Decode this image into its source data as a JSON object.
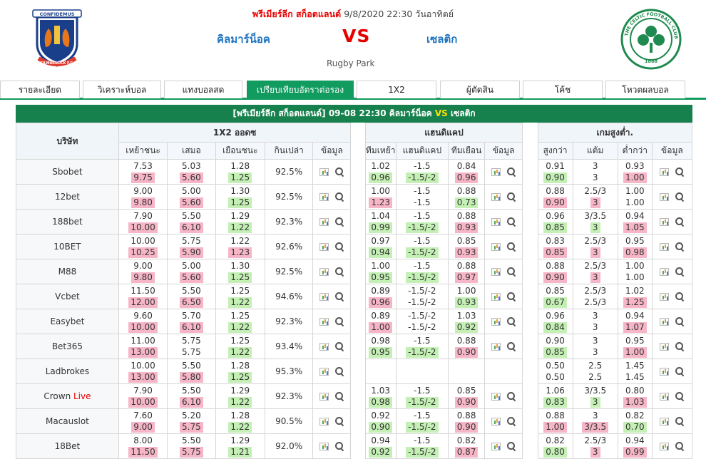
{
  "header": {
    "league": "พรีเมียร์ลีก สก็อตแลนด์",
    "datetime": "9/8/2020 22:30 วันอาทิตย์",
    "home_team": "คิลมาร์น็อค",
    "vs": "VS",
    "away_team": "เซลติก",
    "venue": "Rugby Park",
    "home_logo_text_top": "CONFIDEMUS",
    "home_logo_text_bottom": "KILMARNOCK F.C.",
    "away_logo_text": "THE CELTIC FOOTBALL CLUB",
    "away_logo_year": "1888"
  },
  "tabs": [
    {
      "label": "รายละเอียด"
    },
    {
      "label": "วิเคราะห์บอล"
    },
    {
      "label": "แทงบอลสด"
    },
    {
      "label": "เปรียบเทียบอัตราต่อรอง"
    },
    {
      "label": "1X2"
    },
    {
      "label": "ผู้ตัดสิน"
    },
    {
      "label": "โค้ช"
    },
    {
      "label": "โหวตผลบอล"
    }
  ],
  "matchbar": {
    "league": "[พรีเมียร์ลีก สก็อตแลนด์]",
    "datetime": "09-08 22:30",
    "home": "คิลมาร์น็อค",
    "vs": "VS",
    "away": "เซลติก"
  },
  "table": {
    "company_header": "บริษัท",
    "group_1x2": "1X2 ออดซ",
    "group_hdp": "แฮนดิแคป",
    "group_ou": "เกมสูงต่ำ.",
    "cols_1x2": [
      "เหย้าชนะ",
      "เสมอ",
      "เยือนชนะ",
      "กินเปล่า",
      "ข้อมูล"
    ],
    "cols_hdp": [
      "ทีมเหย้า",
      "แฮนดิแคป",
      "ทีมเยือน",
      "ข้อมูล"
    ],
    "cols_ou": [
      "สูงกว่า",
      "แต้ม",
      "ต่ำกว่า",
      "ข้อมูล"
    ],
    "colors": {
      "up": "#f7b6c8",
      "down": "#c4f0b5",
      "header_green": "#17814e",
      "tab_active": "#129b5f"
    },
    "rows": [
      {
        "company": "Sbobet",
        "live": "",
        "home": [
          "7.53",
          "9.75"
        ],
        "home_t": [
          "",
          "up"
        ],
        "draw": [
          "5.03",
          "5.60"
        ],
        "draw_t": [
          "",
          "up"
        ],
        "away": [
          "1.28",
          "1.25"
        ],
        "away_t": [
          "",
          "dn"
        ],
        "payout": "92.5%",
        "hdp_home": [
          "1.02",
          "0.96"
        ],
        "hdp_home_t": [
          "",
          "dn"
        ],
        "hdp_line": [
          "-1.5",
          "-1.5/-2"
        ],
        "hdp_line_t": [
          "",
          "dn"
        ],
        "hdp_away": [
          "0.84",
          "0.96"
        ],
        "hdp_away_t": [
          "",
          "up"
        ],
        "ou_over": [
          "0.91",
          "0.90"
        ],
        "ou_over_t": [
          "",
          "dn"
        ],
        "ou_line": [
          "3",
          "3"
        ],
        "ou_line_t": [
          "",
          ""
        ],
        "ou_under": [
          "0.93",
          "1.00"
        ],
        "ou_under_t": [
          "",
          "up"
        ]
      },
      {
        "company": "12bet",
        "live": "",
        "home": [
          "9.00",
          "9.80"
        ],
        "home_t": [
          "",
          "up"
        ],
        "draw": [
          "5.00",
          "5.60"
        ],
        "draw_t": [
          "",
          "up"
        ],
        "away": [
          "1.30",
          "1.25"
        ],
        "away_t": [
          "",
          "dn"
        ],
        "payout": "92.5%",
        "hdp_home": [
          "1.00",
          "1.23"
        ],
        "hdp_home_t": [
          "",
          "up"
        ],
        "hdp_line": [
          "-1.5",
          "-1.5"
        ],
        "hdp_line_t": [
          "",
          ""
        ],
        "hdp_away": [
          "0.88",
          "0.73"
        ],
        "hdp_away_t": [
          "",
          "dn"
        ],
        "ou_over": [
          "0.88",
          "0.90"
        ],
        "ou_over_t": [
          "",
          "up"
        ],
        "ou_line": [
          "2.5/3",
          "3"
        ],
        "ou_line_t": [
          "",
          "up"
        ],
        "ou_under": [
          "1.00",
          "1.00"
        ],
        "ou_under_t": [
          "",
          ""
        ]
      },
      {
        "company": "188bet",
        "live": "",
        "home": [
          "7.90",
          "10.00"
        ],
        "home_t": [
          "",
          "up"
        ],
        "draw": [
          "5.50",
          "6.10"
        ],
        "draw_t": [
          "",
          "up"
        ],
        "away": [
          "1.29",
          "1.22"
        ],
        "away_t": [
          "",
          "dn"
        ],
        "payout": "92.3%",
        "hdp_home": [
          "1.04",
          "0.99"
        ],
        "hdp_home_t": [
          "",
          "dn"
        ],
        "hdp_line": [
          "-1.5",
          "-1.5/-2"
        ],
        "hdp_line_t": [
          "",
          "dn"
        ],
        "hdp_away": [
          "0.88",
          "0.93"
        ],
        "hdp_away_t": [
          "",
          "up"
        ],
        "ou_over": [
          "0.96",
          "0.85"
        ],
        "ou_over_t": [
          "",
          "dn"
        ],
        "ou_line": [
          "3/3.5",
          "3"
        ],
        "ou_line_t": [
          "",
          "dn"
        ],
        "ou_under": [
          "0.94",
          "1.05"
        ],
        "ou_under_t": [
          "",
          "up"
        ]
      },
      {
        "company": "10BET",
        "live": "",
        "home": [
          "10.00",
          "10.25"
        ],
        "home_t": [
          "",
          "up"
        ],
        "draw": [
          "5.75",
          "5.90"
        ],
        "draw_t": [
          "",
          "up"
        ],
        "away": [
          "1.22",
          "1.23"
        ],
        "away_t": [
          "",
          "up"
        ],
        "payout": "92.6%",
        "hdp_home": [
          "0.97",
          "0.94"
        ],
        "hdp_home_t": [
          "",
          "dn"
        ],
        "hdp_line": [
          "-1.5",
          "-1.5/-2"
        ],
        "hdp_line_t": [
          "",
          "dn"
        ],
        "hdp_away": [
          "0.85",
          "0.93"
        ],
        "hdp_away_t": [
          "",
          "up"
        ],
        "ou_over": [
          "0.83",
          "0.85"
        ],
        "ou_over_t": [
          "",
          "up"
        ],
        "ou_line": [
          "2.5/3",
          "3"
        ],
        "ou_line_t": [
          "",
          "up"
        ],
        "ou_under": [
          "0.95",
          "0.98"
        ],
        "ou_under_t": [
          "",
          "up"
        ]
      },
      {
        "company": "M88",
        "live": "",
        "home": [
          "9.00",
          "9.80"
        ],
        "home_t": [
          "",
          "up"
        ],
        "draw": [
          "5.00",
          "5.60"
        ],
        "draw_t": [
          "",
          "up"
        ],
        "away": [
          "1.30",
          "1.25"
        ],
        "away_t": [
          "",
          "dn"
        ],
        "payout": "92.5%",
        "hdp_home": [
          "1.00",
          "0.95"
        ],
        "hdp_home_t": [
          "",
          "dn"
        ],
        "hdp_line": [
          "-1.5",
          "-1.5/-2"
        ],
        "hdp_line_t": [
          "",
          "dn"
        ],
        "hdp_away": [
          "0.88",
          "0.97"
        ],
        "hdp_away_t": [
          "",
          "up"
        ],
        "ou_over": [
          "0.88",
          "0.90"
        ],
        "ou_over_t": [
          "",
          "up"
        ],
        "ou_line": [
          "2.5/3",
          "3"
        ],
        "ou_line_t": [
          "",
          "up"
        ],
        "ou_under": [
          "1.00",
          "1.00"
        ],
        "ou_under_t": [
          "",
          ""
        ]
      },
      {
        "company": "Vcbet",
        "live": "",
        "home": [
          "11.50",
          "12.00"
        ],
        "home_t": [
          "",
          "up"
        ],
        "draw": [
          "5.50",
          "6.50"
        ],
        "draw_t": [
          "",
          "up"
        ],
        "away": [
          "1.25",
          "1.22"
        ],
        "away_t": [
          "",
          "dn"
        ],
        "payout": "94.6%",
        "hdp_home": [
          "0.89",
          "0.96"
        ],
        "hdp_home_t": [
          "",
          "up"
        ],
        "hdp_line": [
          "-1.5/-2",
          "-1.5/-2"
        ],
        "hdp_line_t": [
          "",
          ""
        ],
        "hdp_away": [
          "1.00",
          "0.93"
        ],
        "hdp_away_t": [
          "",
          "dn"
        ],
        "ou_over": [
          "0.85",
          "0.67"
        ],
        "ou_over_t": [
          "",
          "dn"
        ],
        "ou_line": [
          "2.5/3",
          "2.5/3"
        ],
        "ou_line_t": [
          "",
          ""
        ],
        "ou_under": [
          "1.02",
          "1.25"
        ],
        "ou_under_t": [
          "",
          "up"
        ]
      },
      {
        "company": "Easybet",
        "live": "",
        "home": [
          "9.60",
          "10.00"
        ],
        "home_t": [
          "",
          "up"
        ],
        "draw": [
          "5.70",
          "6.10"
        ],
        "draw_t": [
          "",
          "up"
        ],
        "away": [
          "1.25",
          "1.22"
        ],
        "away_t": [
          "",
          "dn"
        ],
        "payout": "92.3%",
        "hdp_home": [
          "0.89",
          "1.00"
        ],
        "hdp_home_t": [
          "",
          "up"
        ],
        "hdp_line": [
          "-1.5/-2",
          "-1.5/-2"
        ],
        "hdp_line_t": [
          "",
          ""
        ],
        "hdp_away": [
          "1.03",
          "0.92"
        ],
        "hdp_away_t": [
          "",
          "dn"
        ],
        "ou_over": [
          "0.96",
          "0.84"
        ],
        "ou_over_t": [
          "",
          "dn"
        ],
        "ou_line": [
          "3",
          "3"
        ],
        "ou_line_t": [
          "",
          ""
        ],
        "ou_under": [
          "0.94",
          "1.07"
        ],
        "ou_under_t": [
          "",
          "up"
        ]
      },
      {
        "company": "Bet365",
        "live": "",
        "home": [
          "11.00",
          "13.00"
        ],
        "home_t": [
          "",
          "up"
        ],
        "draw": [
          "5.75",
          "5.75"
        ],
        "draw_t": [
          "",
          ""
        ],
        "away": [
          "1.25",
          "1.22"
        ],
        "away_t": [
          "",
          "dn"
        ],
        "payout": "93.4%",
        "hdp_home": [
          "0.98",
          "0.95"
        ],
        "hdp_home_t": [
          "",
          "dn"
        ],
        "hdp_line": [
          "-1.5",
          "-1.5/-2"
        ],
        "hdp_line_t": [
          "",
          "dn"
        ],
        "hdp_away": [
          "0.88",
          "0.90"
        ],
        "hdp_away_t": [
          "",
          "up"
        ],
        "ou_over": [
          "0.90",
          "0.85"
        ],
        "ou_over_t": [
          "",
          "dn"
        ],
        "ou_line": [
          "3",
          "3"
        ],
        "ou_line_t": [
          "",
          ""
        ],
        "ou_under": [
          "0.95",
          "1.00"
        ],
        "ou_under_t": [
          "",
          "up"
        ]
      },
      {
        "company": "Ladbrokes",
        "live": "",
        "home": [
          "10.00",
          "13.00"
        ],
        "home_t": [
          "",
          "up"
        ],
        "draw": [
          "5.50",
          "5.80"
        ],
        "draw_t": [
          "",
          "up"
        ],
        "away": [
          "1.28",
          "1.25"
        ],
        "away_t": [
          "",
          "dn"
        ],
        "payout": "95.3%",
        "hdp_home": [
          "",
          ""
        ],
        "hdp_home_t": [
          "",
          ""
        ],
        "hdp_line": [
          "",
          ""
        ],
        "hdp_line_t": [
          "",
          ""
        ],
        "hdp_away": [
          "",
          ""
        ],
        "hdp_away_t": [
          "",
          ""
        ],
        "ou_over": [
          "0.50",
          "0.50"
        ],
        "ou_over_t": [
          "",
          ""
        ],
        "ou_line": [
          "2.5",
          "2.5"
        ],
        "ou_line_t": [
          "",
          ""
        ],
        "ou_under": [
          "1.45",
          "1.45"
        ],
        "ou_under_t": [
          "",
          ""
        ]
      },
      {
        "company": "Crown",
        "live": "Live",
        "home": [
          "7.90",
          "10.00"
        ],
        "home_t": [
          "",
          "up"
        ],
        "draw": [
          "5.50",
          "6.10"
        ],
        "draw_t": [
          "",
          "up"
        ],
        "away": [
          "1.29",
          "1.22"
        ],
        "away_t": [
          "",
          "dn"
        ],
        "payout": "92.3%",
        "hdp_home": [
          "1.03",
          "0.98"
        ],
        "hdp_home_t": [
          "",
          "dn"
        ],
        "hdp_line": [
          "-1.5",
          "-1.5/-2"
        ],
        "hdp_line_t": [
          "",
          "dn"
        ],
        "hdp_away": [
          "0.85",
          "0.90"
        ],
        "hdp_away_t": [
          "",
          "up"
        ],
        "ou_over": [
          "1.06",
          "0.83"
        ],
        "ou_over_t": [
          "",
          "dn"
        ],
        "ou_line": [
          "3/3.5",
          "3"
        ],
        "ou_line_t": [
          "",
          "dn"
        ],
        "ou_under": [
          "0.80",
          "1.03"
        ],
        "ou_under_t": [
          "",
          "up"
        ]
      },
      {
        "company": "Macauslot",
        "live": "",
        "home": [
          "7.60",
          "9.00"
        ],
        "home_t": [
          "",
          "up"
        ],
        "draw": [
          "5.20",
          "5.75"
        ],
        "draw_t": [
          "",
          "up"
        ],
        "away": [
          "1.28",
          "1.22"
        ],
        "away_t": [
          "",
          "dn"
        ],
        "payout": "90.5%",
        "hdp_home": [
          "0.92",
          "0.90"
        ],
        "hdp_home_t": [
          "",
          "dn"
        ],
        "hdp_line": [
          "-1.5",
          "-1.5/-2"
        ],
        "hdp_line_t": [
          "",
          "dn"
        ],
        "hdp_away": [
          "0.88",
          "0.90"
        ],
        "hdp_away_t": [
          "",
          "up"
        ],
        "ou_over": [
          "0.88",
          "1.00"
        ],
        "ou_over_t": [
          "",
          "up"
        ],
        "ou_line": [
          "3",
          "3/3.5"
        ],
        "ou_line_t": [
          "",
          "up"
        ],
        "ou_under": [
          "0.82",
          "0.70"
        ],
        "ou_under_t": [
          "",
          "dn"
        ]
      },
      {
        "company": "18Bet",
        "live": "",
        "home": [
          "8.00",
          "11.50"
        ],
        "home_t": [
          "",
          "up"
        ],
        "draw": [
          "5.50",
          "5.75"
        ],
        "draw_t": [
          "",
          "up"
        ],
        "away": [
          "1.29",
          "1.21"
        ],
        "away_t": [
          "",
          "dn"
        ],
        "payout": "92.0%",
        "hdp_home": [
          "0.94",
          "0.92"
        ],
        "hdp_home_t": [
          "",
          "dn"
        ],
        "hdp_line": [
          "-1.5",
          "-1.5/-2"
        ],
        "hdp_line_t": [
          "",
          "dn"
        ],
        "hdp_away": [
          "0.82",
          "0.87"
        ],
        "hdp_away_t": [
          "",
          "up"
        ],
        "ou_over": [
          "0.82",
          "0.80"
        ],
        "ou_over_t": [
          "",
          "dn"
        ],
        "ou_line": [
          "2.5/3",
          "3"
        ],
        "ou_line_t": [
          "",
          "up"
        ],
        "ou_under": [
          "0.94",
          "0.99"
        ],
        "ou_under_t": [
          "",
          "up"
        ]
      }
    ]
  }
}
